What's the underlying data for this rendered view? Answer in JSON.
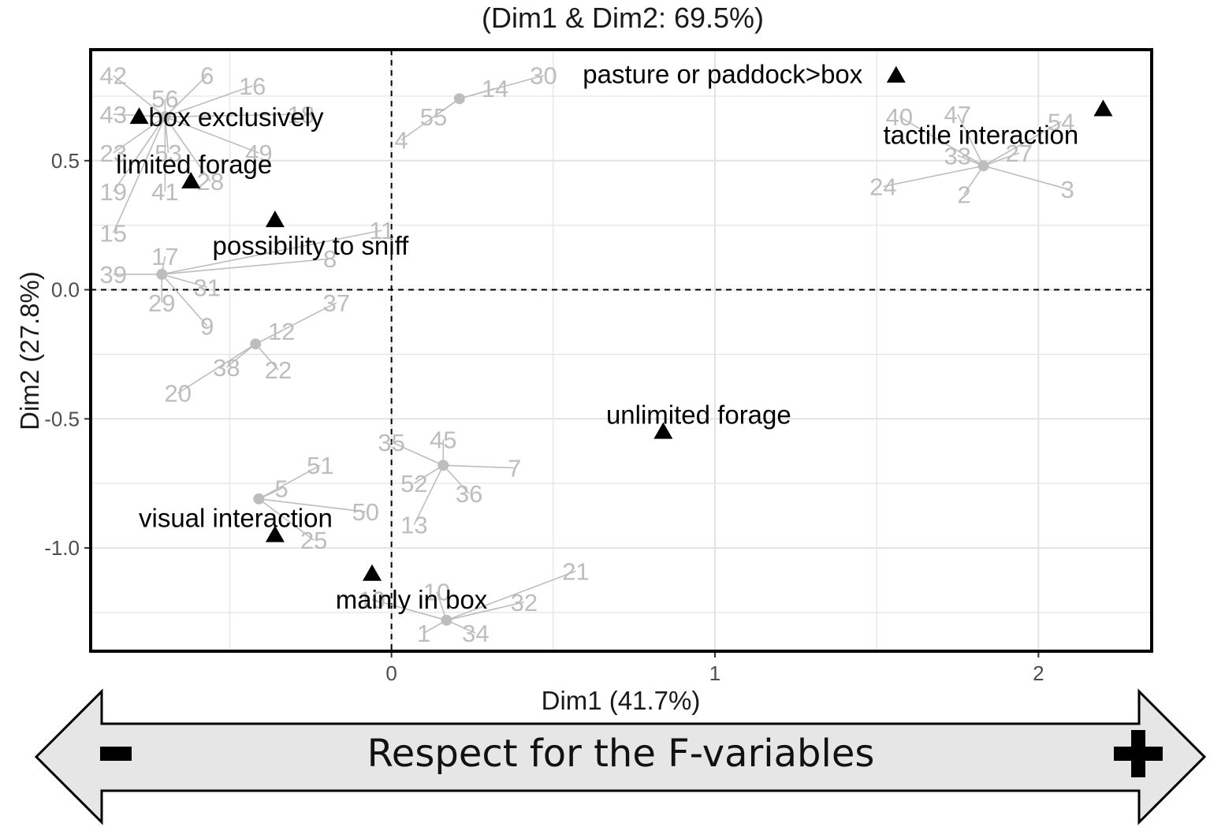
{
  "chart_data": {
    "type": "scatter",
    "title": "(Dim1 & Dim2: 69.5%)",
    "xlabel": "Dim1 (41.7%)",
    "ylabel": "Dim2 (27.8%)",
    "xlim": [
      -0.93,
      2.35
    ],
    "ylim": [
      -1.4,
      0.93
    ],
    "x_ticks": [
      0,
      1,
      2
    ],
    "y_ticks": [
      -1.0,
      -0.5,
      0.0,
      0.5
    ],
    "x_tick_labels": [
      "0",
      "1",
      "2"
    ],
    "y_tick_labels": [
      "-1.0",
      "-0.5",
      "0.0",
      "0.5"
    ],
    "grid": true,
    "reference_lines": {
      "x": 0,
      "y": 0,
      "style": "dashed"
    },
    "categories": [
      {
        "label": "box exclusively",
        "x": -0.78,
        "y": 0.67
      },
      {
        "label": "limited forage",
        "x": -0.62,
        "y": 0.42
      },
      {
        "label": "possibility to sniff",
        "x": -0.36,
        "y": 0.27
      },
      {
        "label": "pasture or paddock>box",
        "x": 1.56,
        "y": 0.83
      },
      {
        "label": "tactile interaction",
        "x": 2.2,
        "y": 0.7
      },
      {
        "label": "unlimited forage",
        "x": 0.84,
        "y": -0.55
      },
      {
        "label": "visual interaction",
        "x": -0.36,
        "y": -0.95
      },
      {
        "label": "mainly in box",
        "x": -0.06,
        "y": -1.1
      }
    ],
    "clusters": [
      {
        "center": [
          -0.7,
          0.67
        ],
        "points": [
          {
            "label": "42",
            "x": -0.86,
            "y": 0.83
          },
          {
            "label": "6",
            "x": -0.57,
            "y": 0.83
          },
          {
            "label": "16",
            "x": -0.43,
            "y": 0.79
          },
          {
            "label": "56",
            "x": -0.7,
            "y": 0.74
          },
          {
            "label": "43",
            "x": -0.86,
            "y": 0.68
          },
          {
            "label": "18",
            "x": -0.28,
            "y": 0.68
          },
          {
            "label": "23",
            "x": -0.86,
            "y": 0.53
          },
          {
            "label": "53",
            "x": -0.69,
            "y": 0.53
          },
          {
            "label": "49",
            "x": -0.41,
            "y": 0.53
          },
          {
            "label": "28",
            "x": -0.56,
            "y": 0.42
          },
          {
            "label": "19",
            "x": -0.86,
            "y": 0.38
          },
          {
            "label": "41",
            "x": -0.7,
            "y": 0.38
          },
          {
            "label": "15",
            "x": -0.86,
            "y": 0.22
          }
        ]
      },
      {
        "center": [
          0.21,
          0.74
        ],
        "points": [
          {
            "label": "30",
            "x": 0.47,
            "y": 0.83
          },
          {
            "label": "14",
            "x": 0.32,
            "y": 0.78
          },
          {
            "label": "55",
            "x": 0.13,
            "y": 0.67
          },
          {
            "label": "4",
            "x": 0.03,
            "y": 0.58
          }
        ]
      },
      {
        "center": [
          1.83,
          0.48
        ],
        "points": [
          {
            "label": "40",
            "x": 1.57,
            "y": 0.67
          },
          {
            "label": "47",
            "x": 1.75,
            "y": 0.68
          },
          {
            "label": "54",
            "x": 2.07,
            "y": 0.65
          },
          {
            "label": "33",
            "x": 1.75,
            "y": 0.52
          },
          {
            "label": "27",
            "x": 1.94,
            "y": 0.53
          },
          {
            "label": "24",
            "x": 1.52,
            "y": 0.4
          },
          {
            "label": "2",
            "x": 1.77,
            "y": 0.37
          },
          {
            "label": "3",
            "x": 2.09,
            "y": 0.39
          }
        ]
      },
      {
        "center": [
          -0.71,
          0.06
        ],
        "points": [
          {
            "label": "17",
            "x": -0.7,
            "y": 0.13
          },
          {
            "label": "11",
            "x": -0.03,
            "y": 0.23
          },
          {
            "label": "8",
            "x": -0.19,
            "y": 0.12
          },
          {
            "label": "39",
            "x": -0.86,
            "y": 0.06
          },
          {
            "label": "31",
            "x": -0.57,
            "y": 0.01
          },
          {
            "label": "29",
            "x": -0.71,
            "y": -0.05
          },
          {
            "label": "9",
            "x": -0.57,
            "y": -0.14
          }
        ]
      },
      {
        "center": [
          -0.42,
          -0.21
        ],
        "points": [
          {
            "label": "37",
            "x": -0.17,
            "y": -0.05
          },
          {
            "label": "12",
            "x": -0.34,
            "y": -0.16
          },
          {
            "label": "38",
            "x": -0.51,
            "y": -0.3
          },
          {
            "label": "22",
            "x": -0.35,
            "y": -0.31
          },
          {
            "label": "20",
            "x": -0.66,
            "y": -0.4
          }
        ]
      },
      {
        "center": [
          0.16,
          -0.68
        ],
        "points": [
          {
            "label": "35",
            "x": 0.0,
            "y": -0.59
          },
          {
            "label": "45",
            "x": 0.16,
            "y": -0.58
          },
          {
            "label": "7",
            "x": 0.38,
            "y": -0.69
          },
          {
            "label": "52",
            "x": 0.07,
            "y": -0.75
          },
          {
            "label": "36",
            "x": 0.24,
            "y": -0.79
          },
          {
            "label": "13",
            "x": 0.07,
            "y": -0.91
          }
        ]
      },
      {
        "center": [
          -0.41,
          -0.81
        ],
        "points": [
          {
            "label": "51",
            "x": -0.22,
            "y": -0.68
          },
          {
            "label": "5",
            "x": -0.34,
            "y": -0.77
          },
          {
            "label": "50",
            "x": -0.08,
            "y": -0.86
          },
          {
            "label": "25",
            "x": -0.24,
            "y": -0.97
          }
        ]
      },
      {
        "center": [
          0.17,
          -1.28
        ],
        "points": [
          {
            "label": "21",
            "x": 0.57,
            "y": -1.09
          },
          {
            "label": "10",
            "x": 0.14,
            "y": -1.17
          },
          {
            "label": "19",
            "x": -0.06,
            "y": -1.2
          },
          {
            "label": "32",
            "x": 0.41,
            "y": -1.21
          },
          {
            "label": "1",
            "x": 0.1,
            "y": -1.33
          },
          {
            "label": "34",
            "x": 0.26,
            "y": -1.33
          }
        ]
      }
    ],
    "colors": {
      "individuals": "#bdbdbd",
      "categories": "#000000",
      "grid": "#e3e3e3",
      "arrow_fill": "#e6e6e6"
    }
  },
  "arrow": {
    "label": "Respect for the F-variables",
    "left_symbol": "-",
    "right_symbol": "+"
  }
}
